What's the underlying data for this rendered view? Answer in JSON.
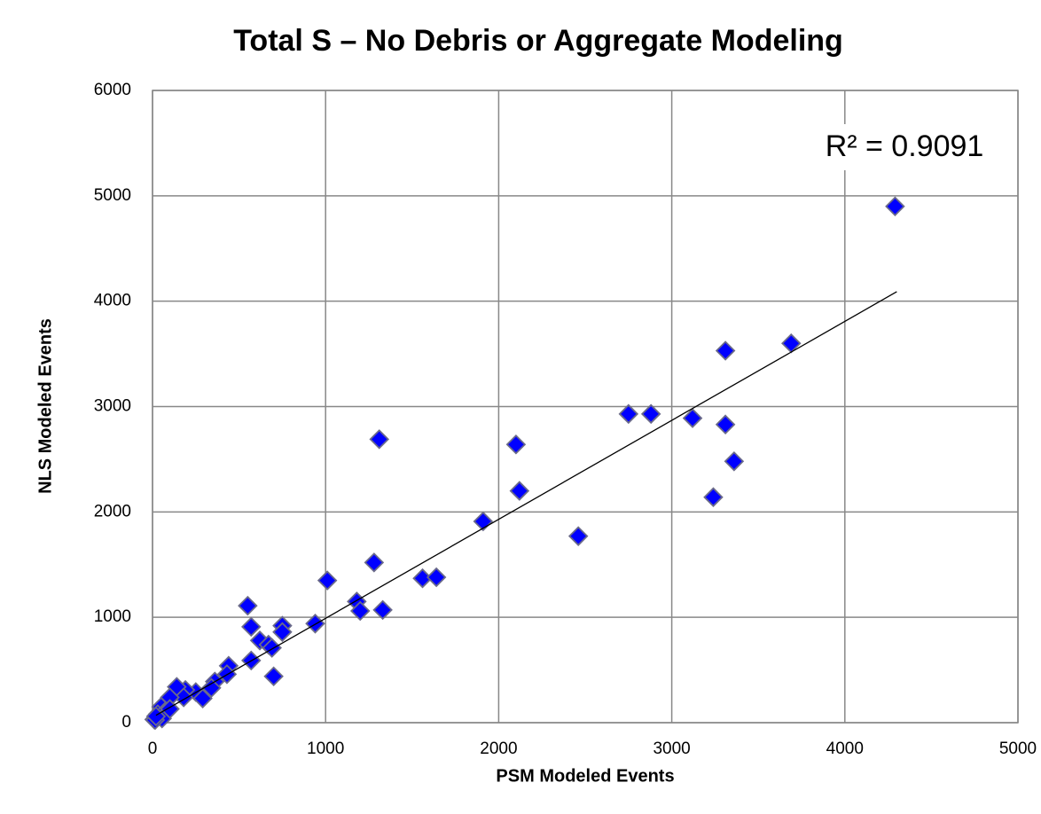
{
  "chart_data": {
    "type": "scatter",
    "title": "Total S – No Debris or Aggregate Modeling",
    "x_label": "PSM Modeled Events",
    "y_label": "NLS Modeled Events",
    "annotation": "R² = 0.9091",
    "xlim": [
      0,
      5000
    ],
    "xticks": [
      0,
      1000,
      2000,
      3000,
      4000,
      5000
    ],
    "ylim": [
      0,
      6000
    ],
    "yticks": [
      0,
      1000,
      2000,
      3000,
      4000,
      5000,
      6000
    ],
    "grid": true,
    "color": "#0000ff",
    "x": [
      4290,
      3690,
      3310,
      2880,
      2750,
      3120,
      3310,
      3360,
      3240,
      2460,
      2100,
      2120,
      1910,
      1310,
      1280,
      1560,
      1640,
      1010,
      1330,
      1180,
      1200,
      940,
      550,
      570,
      620,
      670,
      750,
      750,
      690,
      570,
      700,
      440,
      430,
      360,
      340,
      250,
      190,
      140,
      180,
      100,
      50,
      30,
      70,
      55,
      10,
      15,
      290,
      100,
      20
    ],
    "y": [
      4900,
      3600,
      3530,
      2930,
      2930,
      2890,
      2830,
      2480,
      2140,
      1770,
      2640,
      2200,
      1910,
      2690,
      1520,
      1370,
      1380,
      1350,
      1070,
      1150,
      1060,
      940,
      1110,
      910,
      780,
      740,
      920,
      860,
      710,
      590,
      440,
      540,
      460,
      390,
      330,
      290,
      310,
      340,
      240,
      240,
      150,
      80,
      100,
      40,
      30,
      25,
      230,
      130,
      60
    ],
    "trendline": {
      "x": [
        20,
        4300
      ],
      "y": [
        70,
        4090
      ]
    }
  }
}
